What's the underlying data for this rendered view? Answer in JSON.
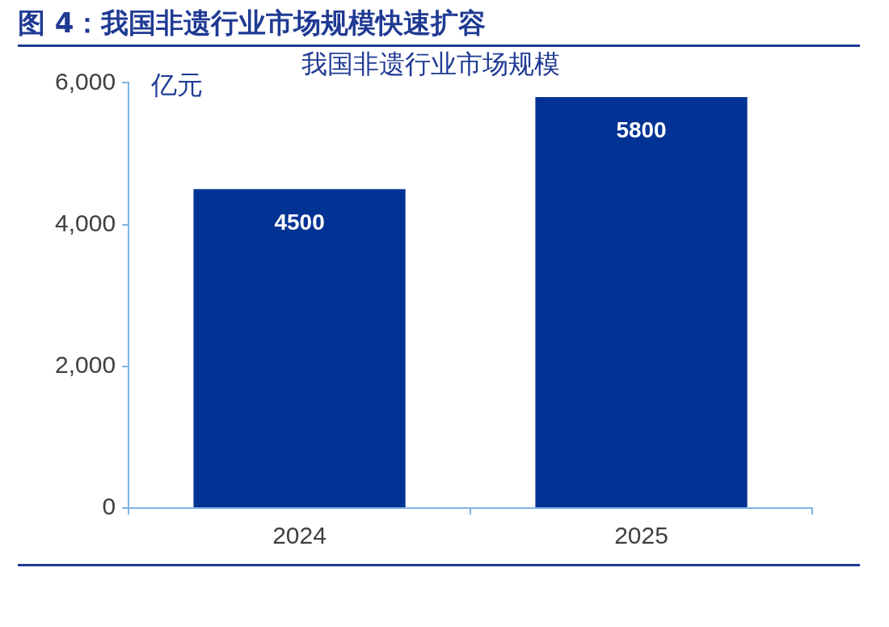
{
  "chart_data": {
    "type": "bar",
    "title": "图 4：我国非遗行业市场规模快速扩容",
    "subtitle": "我国非遗行业市场规模",
    "ylabel": "亿元",
    "categories": [
      "2024",
      "2025"
    ],
    "values": [
      4500,
      5800
    ],
    "color": "#003393",
    "ylim": [
      0,
      6000
    ],
    "yticks": [
      {
        "value": 0,
        "label": "0"
      },
      {
        "value": 2000,
        "label": "2,000"
      },
      {
        "value": 4000,
        "label": "4,000"
      },
      {
        "value": 6000,
        "label": "6,000"
      }
    ],
    "data_labels": true,
    "grid": false,
    "legend": false
  }
}
